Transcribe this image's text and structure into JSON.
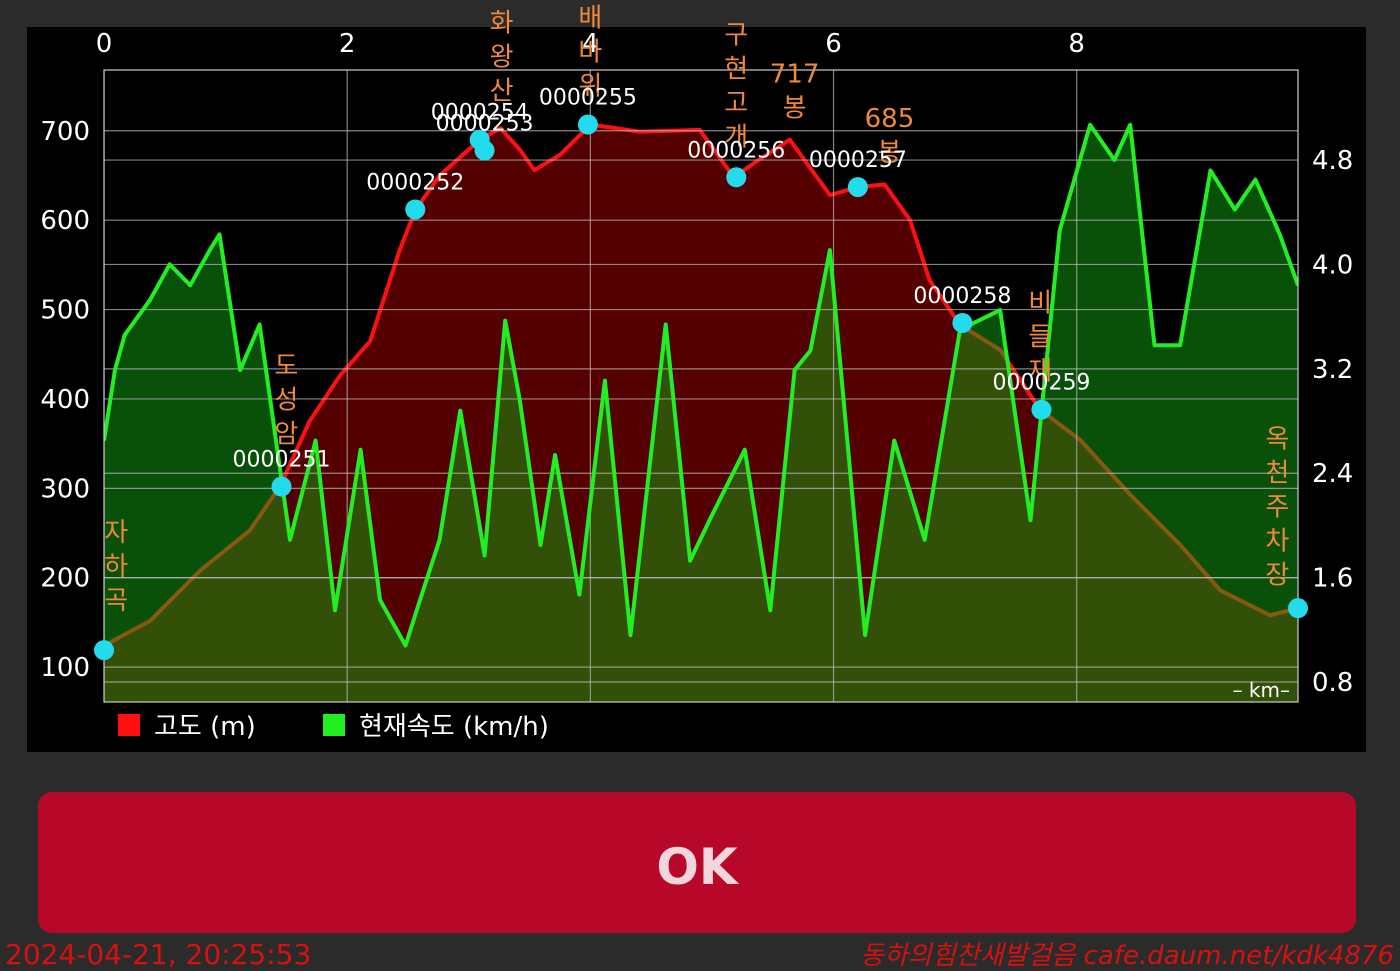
{
  "chart_data": {
    "type": "line",
    "x_label": "– km–",
    "xlim": [
      0,
      9.82
    ],
    "xticks": [
      0,
      2,
      4,
      6,
      8
    ],
    "ylim": [
      61,
      768
    ],
    "yticks": [
      100,
      200,
      300,
      400,
      500,
      600,
      700
    ],
    "y2lim": [
      0.647,
      5.49
    ],
    "y2ticks": [
      0.8,
      1.6,
      2.4,
      3.2,
      {
        "value": 4,
        "label": "4.0"
      },
      4.8
    ],
    "grid": true,
    "series": [
      {
        "name": "고도 (m)",
        "color": "#ff1010",
        "fill": "#550000",
        "x": [
          0,
          0.38,
          0.79,
          1.2,
          1.45,
          1.69,
          1.94,
          2.19,
          2.43,
          2.56,
          2.76,
          3.09,
          3.26,
          3.42,
          3.54,
          3.75,
          4,
          4.41,
          4.9,
          5.18,
          5.39,
          5.64,
          5.97,
          6.2,
          6.42,
          6.63,
          6.79,
          7.04,
          7.37,
          7.7,
          8.03,
          8.44,
          8.85,
          9.18,
          9.59,
          9.82
        ],
        "values": [
          124,
          152,
          208,
          253,
          303,
          375,
          426,
          465,
          566,
          611,
          650,
          690,
          703,
          679,
          656,
          673,
          707,
          699,
          701,
          648,
          668,
          690,
          628,
          637,
          640,
          600,
          533,
          483,
          455,
          388,
          354,
          293,
          237,
          186,
          158,
          166
        ]
      },
      {
        "name": "현재속도 (km/h)",
        "color": "#22ee22",
        "fill": "#11a011",
        "axis": "y2",
        "x": [
          0,
          0.09,
          0.17,
          0.38,
          0.54,
          0.71,
          0.87,
          0.95,
          1.12,
          1.28,
          1.53,
          1.74,
          1.9,
          2.11,
          2.27,
          2.48,
          2.6,
          2.76,
          2.93,
          3.13,
          3.3,
          3.42,
          3.59,
          3.71,
          3.91,
          4.12,
          4.33,
          4.62,
          4.82,
          4.98,
          5.27,
          5.48,
          5.68,
          5.81,
          5.97,
          6.26,
          6.5,
          6.75,
          7.04,
          7.37,
          7.62,
          7.86,
          8.11,
          8.31,
          8.44,
          8.64,
          8.85,
          9.1,
          9.3,
          9.47,
          9.67,
          9.82
        ],
        "values": [
          2.65,
          3.19,
          3.46,
          3.73,
          4,
          3.84,
          4.11,
          4.23,
          3.19,
          3.54,
          1.89,
          2.65,
          1.35,
          2.58,
          1.43,
          1.08,
          1.43,
          1.89,
          2.88,
          1.77,
          3.57,
          2.96,
          1.85,
          2.54,
          1.47,
          3.11,
          1.16,
          3.54,
          1.73,
          2.04,
          2.58,
          1.35,
          3.19,
          3.34,
          4.11,
          1.16,
          2.65,
          1.89,
          3.5,
          3.65,
          2.04,
          4.26,
          5.07,
          4.8,
          5.07,
          3.38,
          3.38,
          4.72,
          4.42,
          4.65,
          4.23,
          3.84
        ]
      }
    ],
    "points": [
      {
        "x": 0,
        "y": 119
      },
      {
        "label": "0000251",
        "x": 1.46,
        "y": 302
      },
      {
        "label": "0000252",
        "x": 2.56,
        "y": 612
      },
      {
        "label": "0000254",
        "x": 3.09,
        "y": 690
      },
      {
        "label": "0000253",
        "x": 3.13,
        "y": 678
      },
      {
        "label": "0000255",
        "x": 3.98,
        "y": 707
      },
      {
        "label": "0000256",
        "x": 5.2,
        "y": 648
      },
      {
        "label": "0000257",
        "x": 6.2,
        "y": 637
      },
      {
        "label": "0000258",
        "x": 7.06,
        "y": 485
      },
      {
        "label": "0000259",
        "x": 7.71,
        "y": 388
      },
      {
        "x": 9.82,
        "y": 166
      }
    ],
    "places": [
      {
        "name": "자하곡",
        "x": 0.1
      },
      {
        "name": "도성암",
        "x": 1.5
      },
      {
        "name": "화왕산",
        "x": 3.27
      },
      {
        "name": "배바위",
        "x": 4
      },
      {
        "name": "구현고개",
        "x": 5.2
      },
      {
        "name": "717봉",
        "x": 5.68
      },
      {
        "name": "685봉",
        "x": 6.46
      },
      {
        "name": "비들재",
        "x": 7.7
      },
      {
        "name": "옥천주차장",
        "x": 9.65
      }
    ]
  },
  "button": {
    "label": "OK"
  },
  "footer": {
    "timestamp": "2024-04-21, 20:25:53",
    "watermark": "동하의힘찬새발걸음 cafe.daum.net/kdk4876"
  }
}
